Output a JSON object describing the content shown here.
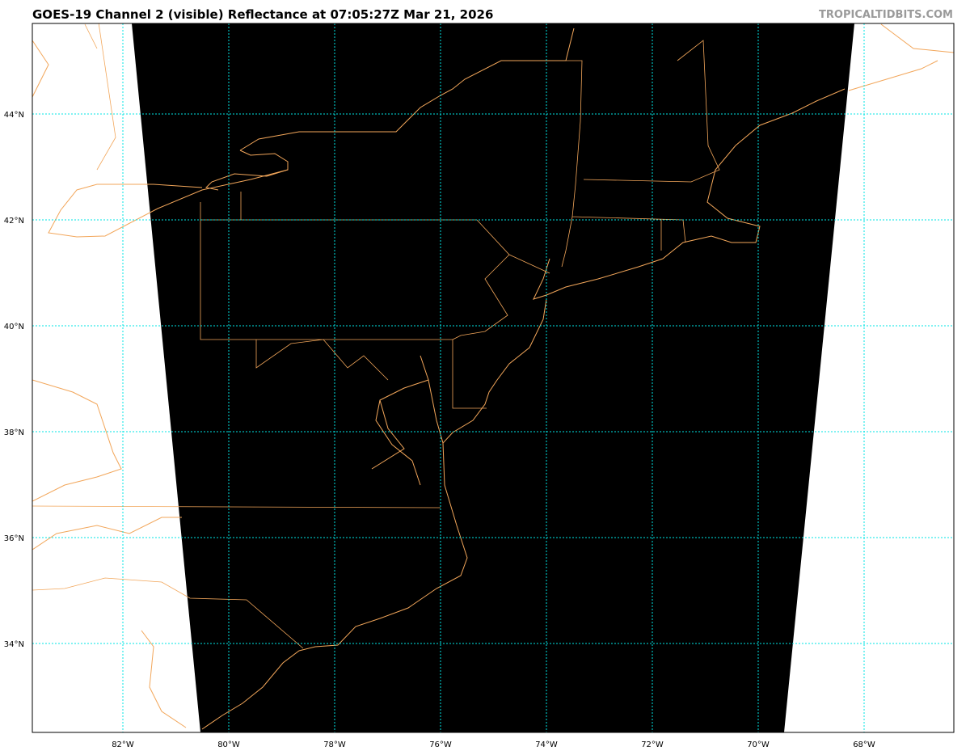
{
  "header": {
    "title": "GOES-19 Channel 2 (visible) Reflectance at 07:05:27Z Mar 21, 2026",
    "credit": "TROPICALTIDBITS.COM"
  },
  "map": {
    "satellite": "GOES-19",
    "channel": "Channel 2 (visible)",
    "product": "Reflectance",
    "colors": {
      "satellite_swath": "#000000",
      "outside_swath": "#ffffff",
      "coastlines_borders": "#f2a65a",
      "gridlines": "#00e5e5"
    },
    "lon_labels": [
      "82°W",
      "80°W",
      "78°W",
      "76°W",
      "74°W",
      "72°W",
      "70°W",
      "68°W"
    ],
    "lat_labels": [
      "44°N",
      "42°N",
      "40°N",
      "38°N",
      "36°N",
      "34°N"
    ]
  }
}
